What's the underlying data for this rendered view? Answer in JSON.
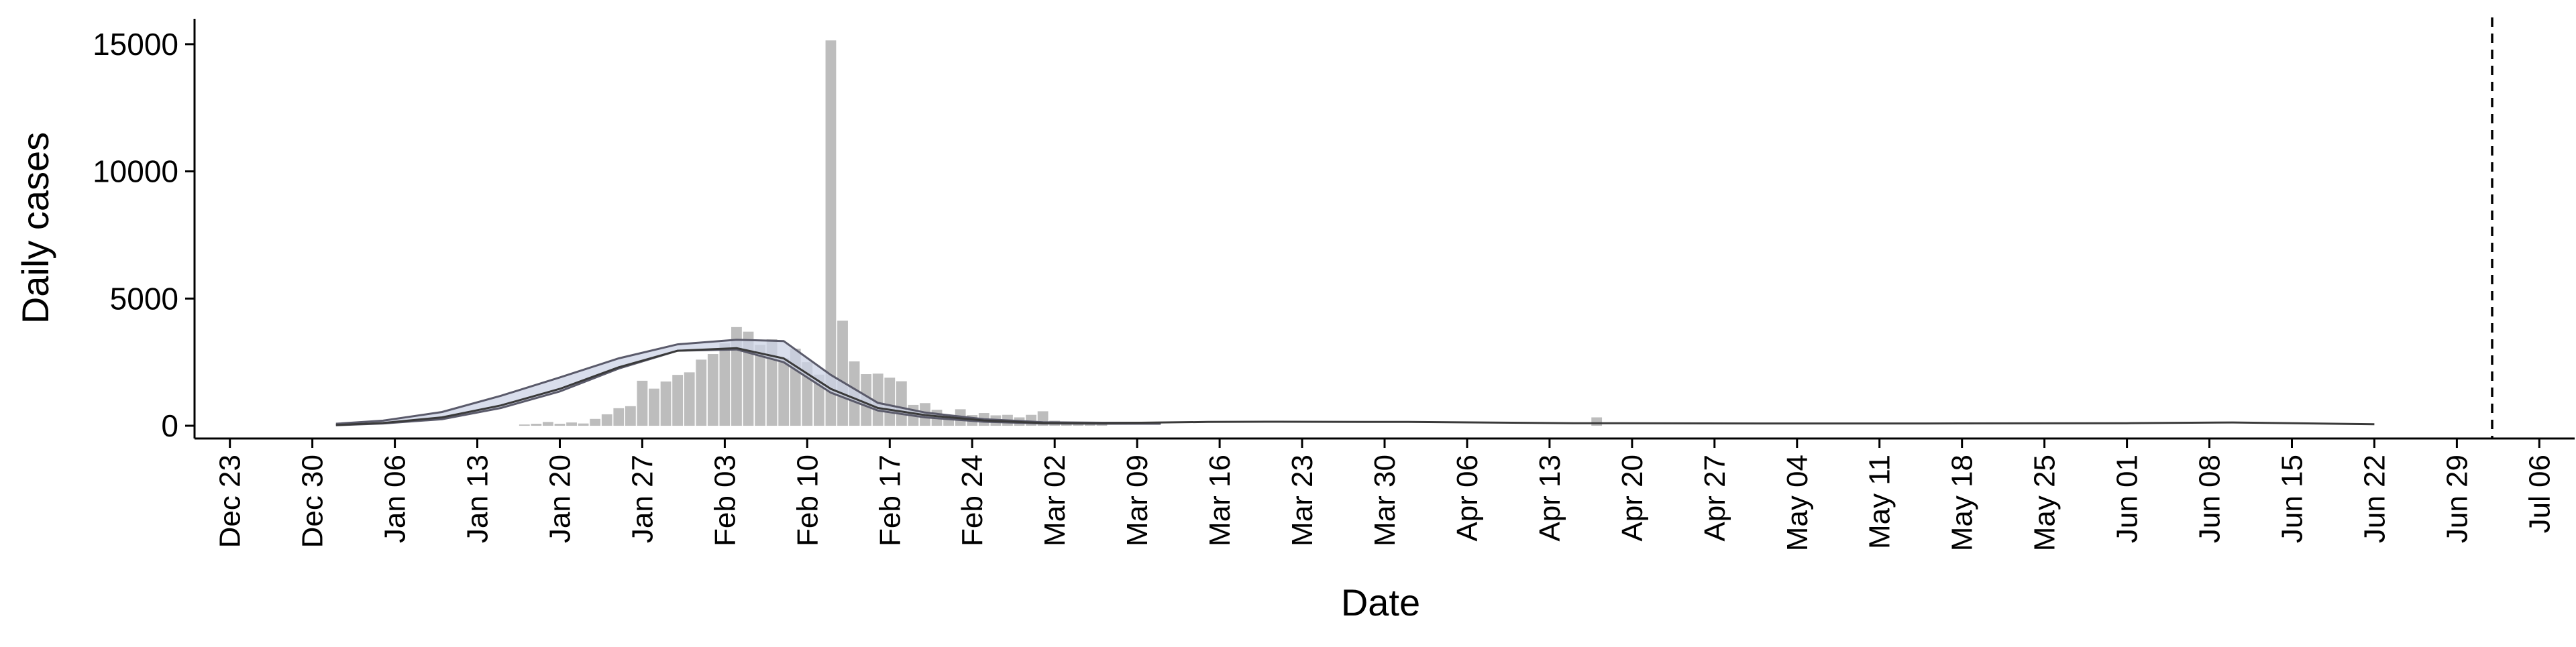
{
  "colors": {
    "bars": "#bdbdbd",
    "band_fill": "#ccd3e6",
    "band_line": "#5a5a6a",
    "fit_line": "#3a3a3a",
    "axis": "#000000",
    "ref_line": "#000000"
  },
  "chart_data": {
    "type": "bar",
    "xlabel": "Date",
    "ylabel": "Daily cases",
    "xlim": [
      "2019-12-20",
      "2020-07-09"
    ],
    "ylim": [
      -500,
      16000
    ],
    "x_tick_dates": [
      "2019-12-23",
      "2019-12-30",
      "2020-01-06",
      "2020-01-13",
      "2020-01-20",
      "2020-01-27",
      "2020-02-03",
      "2020-02-10",
      "2020-02-17",
      "2020-02-24",
      "2020-03-02",
      "2020-03-09",
      "2020-03-16",
      "2020-03-23",
      "2020-03-30",
      "2020-04-06",
      "2020-04-13",
      "2020-04-20",
      "2020-04-27",
      "2020-05-04",
      "2020-05-11",
      "2020-05-18",
      "2020-05-25",
      "2020-06-01",
      "2020-06-08",
      "2020-06-15",
      "2020-06-22",
      "2020-06-29",
      "2020-07-06"
    ],
    "x_tick_labels": [
      "Dec 23",
      "Dec 30",
      "Jan 06",
      "Jan 13",
      "Jan 20",
      "Jan 27",
      "Feb 03",
      "Feb 10",
      "Feb 17",
      "Feb 24",
      "Mar 02",
      "Mar 09",
      "Mar 16",
      "Mar 23",
      "Mar 30",
      "Apr 06",
      "Apr 13",
      "Apr 20",
      "Apr 27",
      "May 04",
      "May 11",
      "May 18",
      "May 25",
      "Jun 01",
      "Jun 08",
      "Jun 15",
      "Jun 22",
      "Jun 29",
      "Jul 06"
    ],
    "y_ticks": [
      0,
      5000,
      10000,
      15000
    ],
    "y_tick_labels": [
      "0",
      "5000",
      "10000",
      "15000"
    ],
    "grid": false,
    "legend": "none",
    "bars": {
      "dates": [
        "2020-01-17",
        "2020-01-18",
        "2020-01-19",
        "2020-01-20",
        "2020-01-21",
        "2020-01-22",
        "2020-01-23",
        "2020-01-24",
        "2020-01-25",
        "2020-01-26",
        "2020-01-27",
        "2020-01-28",
        "2020-01-29",
        "2020-01-30",
        "2020-01-31",
        "2020-02-01",
        "2020-02-02",
        "2020-02-03",
        "2020-02-04",
        "2020-02-05",
        "2020-02-06",
        "2020-02-07",
        "2020-02-08",
        "2020-02-09",
        "2020-02-10",
        "2020-02-11",
        "2020-02-12",
        "2020-02-13",
        "2020-02-14",
        "2020-02-15",
        "2020-02-16",
        "2020-02-17",
        "2020-02-18",
        "2020-02-19",
        "2020-02-20",
        "2020-02-21",
        "2020-02-22",
        "2020-02-23",
        "2020-02-24",
        "2020-02-25",
        "2020-02-26",
        "2020-02-27",
        "2020-02-28",
        "2020-02-29",
        "2020-03-01",
        "2020-03-02",
        "2020-03-03",
        "2020-03-04",
        "2020-03-05",
        "2020-03-06",
        "2020-04-17"
      ],
      "values": [
        50,
        80,
        150,
        80,
        130,
        90,
        270,
        450,
        690,
        770,
        1770,
        1460,
        1740,
        2000,
        2100,
        2600,
        2820,
        3240,
        3880,
        3700,
        3180,
        3400,
        2650,
        3030,
        2500,
        2010,
        15150,
        4130,
        2530,
        2030,
        2050,
        1890,
        1750,
        820,
        890,
        630,
        400,
        650,
        420,
        500,
        410,
        430,
        330,
        430,
        570,
        200,
        120,
        120,
        140,
        100,
        330
      ]
    },
    "band": {
      "dates": [
        "2020-01-01",
        "2020-01-05",
        "2020-01-10",
        "2020-01-15",
        "2020-01-20",
        "2020-01-25",
        "2020-01-30",
        "2020-02-04",
        "2020-02-08",
        "2020-02-12",
        "2020-02-16",
        "2020-02-20",
        "2020-02-25",
        "2020-03-01",
        "2020-03-06",
        "2020-03-11"
      ],
      "upper": [
        80,
        200,
        540,
        1180,
        1900,
        2650,
        3200,
        3380,
        3330,
        2000,
        900,
        520,
        260,
        140,
        120,
        120
      ],
      "lower": [
        20,
        90,
        260,
        700,
        1350,
        2250,
        2950,
        3000,
        2500,
        1300,
        600,
        330,
        160,
        90,
        80,
        80
      ]
    },
    "fit_line": {
      "dates": [
        "2020-01-01",
        "2020-01-05",
        "2020-01-10",
        "2020-01-15",
        "2020-01-20",
        "2020-01-25",
        "2020-01-30",
        "2020-02-04",
        "2020-02-08",
        "2020-02-12",
        "2020-02-16",
        "2020-02-20",
        "2020-02-25",
        "2020-03-01",
        "2020-03-06",
        "2020-03-15",
        "2020-03-20",
        "2020-04-01",
        "2020-04-15",
        "2020-05-01",
        "2020-05-15",
        "2020-06-01",
        "2020-06-10",
        "2020-06-22"
      ],
      "values": [
        30,
        110,
        330,
        800,
        1450,
        2300,
        2950,
        3050,
        2650,
        1450,
        700,
        420,
        210,
        110,
        100,
        150,
        160,
        150,
        100,
        90,
        90,
        100,
        130,
        60
      ]
    },
    "vline_date": "2020-07-02"
  }
}
